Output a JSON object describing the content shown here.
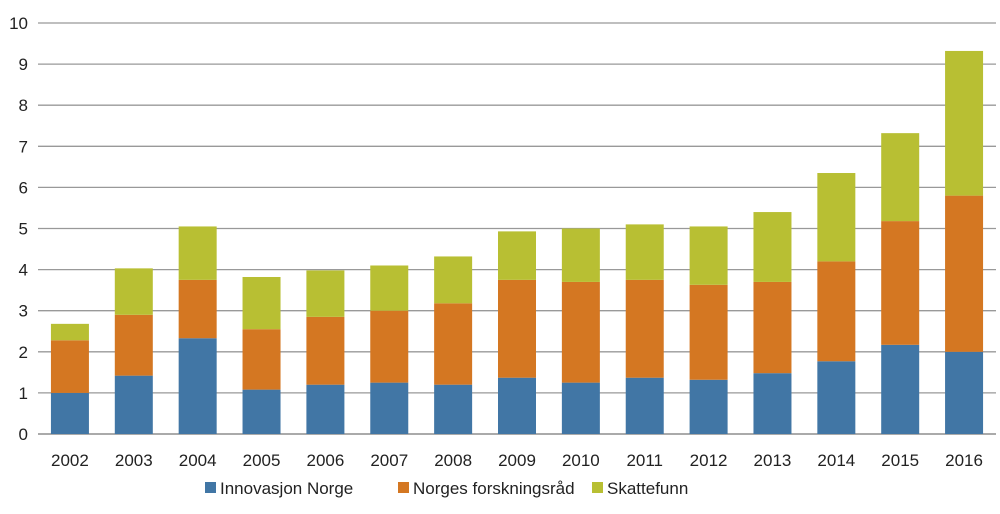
{
  "chart_data": {
    "type": "bar",
    "stacked": true,
    "categories": [
      "2002",
      "2003",
      "2004",
      "2005",
      "2006",
      "2007",
      "2008",
      "2009",
      "2010",
      "2011",
      "2012",
      "2013",
      "2014",
      "2015",
      "2016"
    ],
    "series": [
      {
        "name": "Innovasjon Norge",
        "color": "#4176a5",
        "values": [
          1.0,
          1.42,
          2.33,
          1.08,
          1.2,
          1.25,
          1.2,
          1.37,
          1.25,
          1.37,
          1.32,
          1.48,
          1.77,
          2.17,
          2.0
        ]
      },
      {
        "name": "Norges forskningsråd",
        "color": "#d47722",
        "values": [
          1.28,
          1.48,
          1.42,
          1.47,
          1.65,
          1.75,
          1.98,
          2.38,
          2.45,
          2.38,
          2.31,
          2.22,
          2.43,
          3.01,
          3.8
        ]
      },
      {
        "name": "Skattefunn",
        "color": "#b8bf33",
        "values": [
          0.4,
          1.13,
          1.3,
          1.27,
          1.13,
          1.1,
          1.14,
          1.18,
          1.3,
          1.35,
          1.42,
          1.7,
          2.15,
          2.14,
          3.52
        ]
      }
    ],
    "ylim": [
      0,
      10
    ],
    "yticks": [
      "0",
      "1",
      "2",
      "3",
      "4",
      "5",
      "6",
      "7",
      "8",
      "9",
      "10"
    ],
    "grid": true,
    "legend": "bottom"
  }
}
